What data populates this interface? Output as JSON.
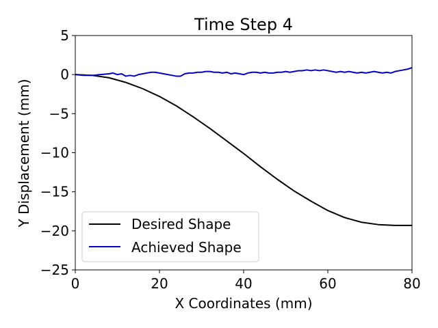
{
  "chart_data": {
    "type": "line",
    "title": "Time Step 4",
    "xlabel": "X Coordinates (mm)",
    "ylabel": "Y Displacement (mm)",
    "xlim": [
      0,
      80
    ],
    "ylim": [
      -25,
      5
    ],
    "x_ticks": [
      {
        "value": 0,
        "label": "0"
      },
      {
        "value": 20,
        "label": "20"
      },
      {
        "value": 40,
        "label": "40"
      },
      {
        "value": 60,
        "label": "60"
      },
      {
        "value": 80,
        "label": "80"
      }
    ],
    "y_ticks": [
      {
        "value": 5,
        "label": "5"
      },
      {
        "value": 0,
        "label": "0"
      },
      {
        "value": -5,
        "label": "−5"
      },
      {
        "value": -10,
        "label": "−10"
      },
      {
        "value": -15,
        "label": "−15"
      },
      {
        "value": -20,
        "label": "−20"
      },
      {
        "value": -25,
        "label": "−25"
      }
    ],
    "grid": false,
    "legend_position": "lower-left",
    "series": [
      {
        "name": "Desired Shape",
        "color": "#000000",
        "x": [
          0,
          4,
          8,
          12,
          16,
          20,
          24,
          28,
          32,
          36,
          40,
          44,
          48,
          52,
          56,
          60,
          64,
          68,
          72,
          76,
          80
        ],
        "y": [
          0,
          -0.1,
          -0.4,
          -1.0,
          -1.8,
          -2.8,
          -4.0,
          -5.4,
          -6.9,
          -8.5,
          -10.1,
          -11.8,
          -13.4,
          -14.9,
          -16.2,
          -17.4,
          -18.3,
          -18.9,
          -19.2,
          -19.3,
          -19.3
        ]
      },
      {
        "name": "Achieved Shape",
        "color": "#0000cc",
        "x": [
          0,
          2,
          4,
          6,
          8,
          9,
          10,
          11,
          12,
          13,
          14,
          15,
          16,
          17,
          18,
          19,
          20,
          21,
          22,
          23,
          24,
          25,
          26,
          27,
          28,
          29,
          30,
          31,
          32,
          33,
          34,
          35,
          36,
          37,
          38,
          39,
          40,
          41,
          42,
          43,
          44,
          45,
          46,
          47,
          48,
          49,
          50,
          51,
          52,
          53,
          54,
          55,
          56,
          57,
          58,
          59,
          60,
          61,
          62,
          63,
          64,
          65,
          66,
          67,
          68,
          69,
          70,
          71,
          72,
          73,
          74,
          75,
          76,
          77,
          78,
          79,
          80
        ],
        "y": [
          0,
          -0.1,
          -0.1,
          0,
          0.1,
          0.2,
          0,
          0.1,
          -0.2,
          -0.1,
          -0.2,
          0,
          0.1,
          0.2,
          0.3,
          0.3,
          0.2,
          0.1,
          0,
          -0.1,
          -0.2,
          -0.2,
          0.1,
          0.2,
          0.2,
          0.3,
          0.3,
          0.4,
          0.4,
          0.3,
          0.3,
          0.2,
          0.3,
          0.1,
          0.2,
          0.1,
          0,
          0.2,
          0.3,
          0.3,
          0.2,
          0.3,
          0.2,
          0.2,
          0.3,
          0.3,
          0.4,
          0.3,
          0.4,
          0.5,
          0.5,
          0.6,
          0.5,
          0.6,
          0.5,
          0.6,
          0.5,
          0.4,
          0.3,
          0.4,
          0.3,
          0.4,
          0.3,
          0.2,
          0.3,
          0.2,
          0.3,
          0.4,
          0.3,
          0.2,
          0.3,
          0.2,
          0.4,
          0.5,
          0.6,
          0.7,
          0.9
        ]
      }
    ]
  }
}
